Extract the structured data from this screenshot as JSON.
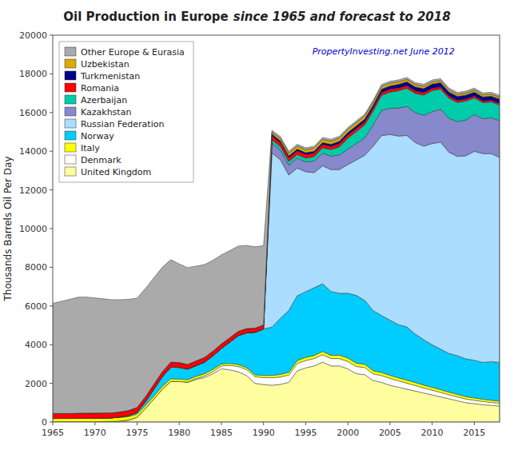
{
  "chart_data": {
    "type": "area",
    "stacked": true,
    "title": "Oil Production in Europe",
    "subtitle": "since 1965 and forecast to 2018",
    "ylabel": "Thousands Barrels Oil Per Day",
    "annotations": [
      "PropertyInvesting.net  June 2012"
    ],
    "x": [
      1965,
      1966,
      1967,
      1968,
      1969,
      1970,
      1971,
      1972,
      1973,
      1974,
      1975,
      1976,
      1977,
      1978,
      1979,
      1980,
      1981,
      1982,
      1983,
      1984,
      1985,
      1986,
      1987,
      1988,
      1989,
      1990,
      1991,
      1992,
      1993,
      1994,
      1995,
      1996,
      1997,
      1998,
      1999,
      2000,
      2001,
      2002,
      2003,
      2004,
      2005,
      2006,
      2007,
      2008,
      2009,
      2010,
      2011,
      2012,
      2013,
      2014,
      2015,
      2016,
      2017,
      2018
    ],
    "series": [
      {
        "name": "United Kingdom",
        "color": "#FFFFA0",
        "values": [
          10,
          10,
          10,
          10,
          10,
          10,
          20,
          30,
          50,
          100,
          250,
          700,
          1200,
          1700,
          2100,
          2100,
          2050,
          2200,
          2300,
          2500,
          2750,
          2700,
          2600,
          2400,
          2000,
          1940,
          1900,
          1950,
          2050,
          2650,
          2800,
          2900,
          3100,
          2900,
          2900,
          2750,
          2500,
          2450,
          2150,
          2050,
          1900,
          1800,
          1700,
          1600,
          1500,
          1400,
          1300,
          1200,
          1100,
          1000,
          950,
          900,
          860,
          830
        ]
      },
      {
        "name": "Denmark",
        "color": "#FFFFFF",
        "values": [
          0,
          0,
          0,
          0,
          0,
          0,
          0,
          0,
          0,
          0,
          0,
          0,
          0,
          0,
          0,
          0,
          20,
          50,
          80,
          110,
          150,
          230,
          270,
          310,
          340,
          360,
          390,
          380,
          380,
          380,
          380,
          380,
          380,
          380,
          380,
          380,
          370,
          370,
          340,
          350,
          360,
          330,
          310,
          290,
          260,
          250,
          230,
          210,
          200,
          190,
          175,
          165,
          155,
          145
        ]
      },
      {
        "name": "Italy",
        "color": "#FFFF00",
        "values": [
          180,
          180,
          180,
          185,
          185,
          185,
          185,
          185,
          185,
          185,
          160,
          155,
          150,
          145,
          135,
          125,
          115,
          115,
          115,
          115,
          105,
          100,
          100,
          100,
          100,
          110,
          120,
          130,
          140,
          150,
          160,
          160,
          165,
          170,
          175,
          180,
          175,
          170,
          165,
          160,
          155,
          155,
          155,
          155,
          150,
          145,
          140,
          135,
          130,
          125,
          120,
          115,
          110,
          105
        ]
      },
      {
        "name": "Norway",
        "color": "#00CCFF",
        "values": [
          0,
          0,
          0,
          0,
          0,
          0,
          0,
          0,
          30,
          50,
          90,
          200,
          350,
          500,
          600,
          600,
          550,
          550,
          600,
          700,
          800,
          1100,
          1500,
          1800,
          2200,
          2400,
          2500,
          2900,
          3200,
          3350,
          3400,
          3500,
          3500,
          3300,
          3200,
          3350,
          3500,
          3300,
          3100,
          2950,
          2850,
          2750,
          2750,
          2500,
          2350,
          2200,
          2100,
          2000,
          2000,
          1950,
          1950,
          1900,
          2000,
          2000
        ]
      },
      {
        "name": "Russian Federation",
        "color": "#AADDFF",
        "values": [
          0,
          0,
          0,
          0,
          0,
          0,
          0,
          0,
          0,
          0,
          0,
          0,
          0,
          0,
          0,
          0,
          0,
          0,
          0,
          0,
          0,
          0,
          0,
          0,
          0,
          0,
          9000,
          8200,
          7000,
          6600,
          6200,
          5950,
          6100,
          6300,
          6400,
          6650,
          7000,
          7500,
          8500,
          9300,
          9600,
          9750,
          9900,
          9900,
          10000,
          10400,
          10700,
          10400,
          10300,
          10500,
          10800,
          10800,
          10750,
          10600
        ]
      },
      {
        "name": "Kazakhstan",
        "color": "#8888CC",
        "values": [
          0,
          0,
          0,
          0,
          0,
          0,
          0,
          0,
          0,
          0,
          0,
          0,
          0,
          0,
          0,
          0,
          0,
          0,
          0,
          0,
          0,
          0,
          0,
          0,
          0,
          0,
          500,
          500,
          510,
          510,
          510,
          600,
          650,
          700,
          750,
          800,
          850,
          900,
          1100,
          1300,
          1350,
          1450,
          1500,
          1550,
          1600,
          1650,
          1700,
          1750,
          1800,
          1850,
          1900,
          1800,
          1850,
          1900
        ]
      },
      {
        "name": "Azerbaijan",
        "color": "#00CCAA",
        "values": [
          0,
          0,
          0,
          0,
          0,
          0,
          0,
          0,
          0,
          0,
          0,
          0,
          0,
          0,
          0,
          0,
          0,
          0,
          0,
          0,
          0,
          0,
          0,
          0,
          0,
          0,
          180,
          180,
          190,
          190,
          190,
          230,
          280,
          330,
          420,
          560,
          620,
          670,
          720,
          780,
          840,
          890,
          940,
          990,
          1040,
          1090,
          1040,
          1040,
          990,
          980,
          860,
          830,
          820,
          810
        ]
      },
      {
        "name": "Romania",
        "color": "#FF0000",
        "values": [
          250,
          250,
          250,
          260,
          265,
          270,
          265,
          260,
          260,
          260,
          255,
          260,
          260,
          260,
          260,
          250,
          245,
          245,
          245,
          240,
          235,
          230,
          225,
          220,
          215,
          210,
          200,
          195,
          190,
          185,
          185,
          180,
          175,
          170,
          170,
          165,
          160,
          155,
          150,
          150,
          145,
          140,
          135,
          130,
          125,
          120,
          115,
          110,
          105,
          100,
          95,
          90,
          90,
          90
        ]
      },
      {
        "name": "Turkmenistan",
        "color": "#000088",
        "values": [
          0,
          0,
          0,
          0,
          0,
          0,
          0,
          0,
          0,
          0,
          0,
          0,
          0,
          0,
          0,
          0,
          0,
          0,
          0,
          0,
          0,
          0,
          0,
          0,
          0,
          0,
          100,
          100,
          100,
          100,
          100,
          100,
          100,
          110,
          120,
          130,
          140,
          150,
          160,
          170,
          180,
          190,
          200,
          210,
          220,
          220,
          220,
          210,
          210,
          210,
          210,
          210,
          210,
          210
        ]
      },
      {
        "name": "Uzbekistan",
        "color": "#DDAA00",
        "values": [
          0,
          0,
          0,
          0,
          0,
          0,
          0,
          0,
          0,
          0,
          0,
          0,
          0,
          0,
          0,
          0,
          0,
          0,
          0,
          0,
          0,
          0,
          0,
          0,
          0,
          0,
          90,
          120,
          140,
          145,
          150,
          155,
          165,
          160,
          160,
          160,
          155,
          150,
          145,
          140,
          135,
          130,
          125,
          120,
          115,
          110,
          105,
          105,
          105,
          105,
          105,
          105,
          105,
          105
        ]
      },
      {
        "name": "Other Europe & Eurasia",
        "color": "#AAAAAA",
        "values": [
          5700,
          5800,
          5900,
          6000,
          6000,
          5950,
          5900,
          5850,
          5800,
          5750,
          5650,
          5600,
          5500,
          5400,
          5300,
          5100,
          5000,
          4900,
          4800,
          4700,
          4600,
          4500,
          4400,
          4300,
          4200,
          4100,
          100,
          100,
          100,
          100,
          100,
          100,
          100,
          100,
          100,
          100,
          100,
          100,
          100,
          100,
          100,
          100,
          100,
          100,
          100,
          100,
          100,
          100,
          100,
          100,
          100,
          100,
          100,
          100
        ]
      }
    ],
    "xlim": [
      1965,
      2018
    ],
    "xticks": [
      1965,
      1970,
      1975,
      1980,
      1985,
      1990,
      1995,
      2000,
      2005,
      2010,
      2015
    ],
    "ylim": [
      0,
      20000
    ],
    "yticks": [
      0,
      2000,
      4000,
      6000,
      8000,
      10000,
      12000,
      14000,
      16000,
      18000,
      20000
    ],
    "grid": false,
    "legend": "upper left"
  }
}
